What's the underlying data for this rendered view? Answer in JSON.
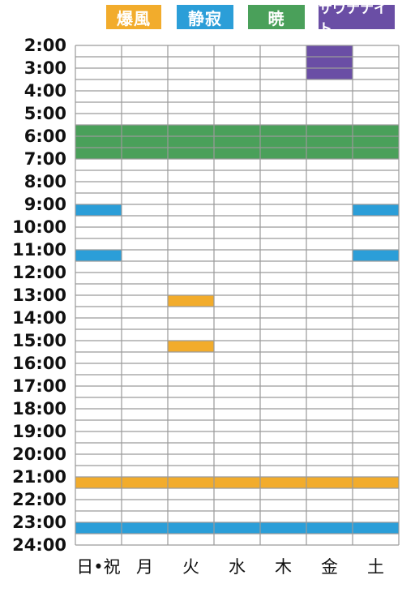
{
  "chart_data": {
    "type": "table",
    "legend": [
      {
        "name": "爆風",
        "color": "#f2ac2c"
      },
      {
        "name": "静寂",
        "color": "#2b9ed8"
      },
      {
        "name": "暁",
        "color": "#4aa05a"
      },
      {
        "name": "サウナナイト",
        "color": "#6a4ea5"
      }
    ],
    "days": [
      "日•祝",
      "月",
      "火",
      "水",
      "木",
      "金",
      "土"
    ],
    "hours": [
      "2:00",
      "3:00",
      "4:00",
      "5:00",
      "6:00",
      "7:00",
      "8:00",
      "9:00",
      "10:00",
      "11:00",
      "12:00",
      "13:00",
      "14:00",
      "15:00",
      "16:00",
      "17:00",
      "18:00",
      "19:00",
      "20:00",
      "21:00",
      "22:00",
      "23:00",
      "24:00"
    ],
    "time_range": [
      2,
      24
    ],
    "events": [
      {
        "legend": "サウナナイト",
        "days": [
          5
        ],
        "start": 2,
        "end": 3.5
      },
      {
        "legend": "暁",
        "days": [
          0,
          1,
          2,
          3,
          4,
          5,
          6
        ],
        "start": 5.5,
        "end": 7
      },
      {
        "legend": "静寂",
        "days": [
          0
        ],
        "start": 9,
        "end": 9.5
      },
      {
        "legend": "静寂",
        "days": [
          6
        ],
        "start": 9,
        "end": 9.5
      },
      {
        "legend": "静寂",
        "days": [
          0
        ],
        "start": 11,
        "end": 11.5
      },
      {
        "legend": "静寂",
        "days": [
          6
        ],
        "start": 11,
        "end": 11.5
      },
      {
        "legend": "爆風",
        "days": [
          2
        ],
        "start": 13,
        "end": 13.5
      },
      {
        "legend": "爆風",
        "days": [
          2
        ],
        "start": 15,
        "end": 15.5
      },
      {
        "legend": "爆風",
        "days": [
          0,
          1,
          2,
          3,
          4,
          5,
          6
        ],
        "start": 21,
        "end": 21.5
      },
      {
        "legend": "静寂",
        "days": [
          0,
          1,
          2,
          3,
          4,
          5,
          6
        ],
        "start": 23,
        "end": 23.5
      }
    ]
  }
}
